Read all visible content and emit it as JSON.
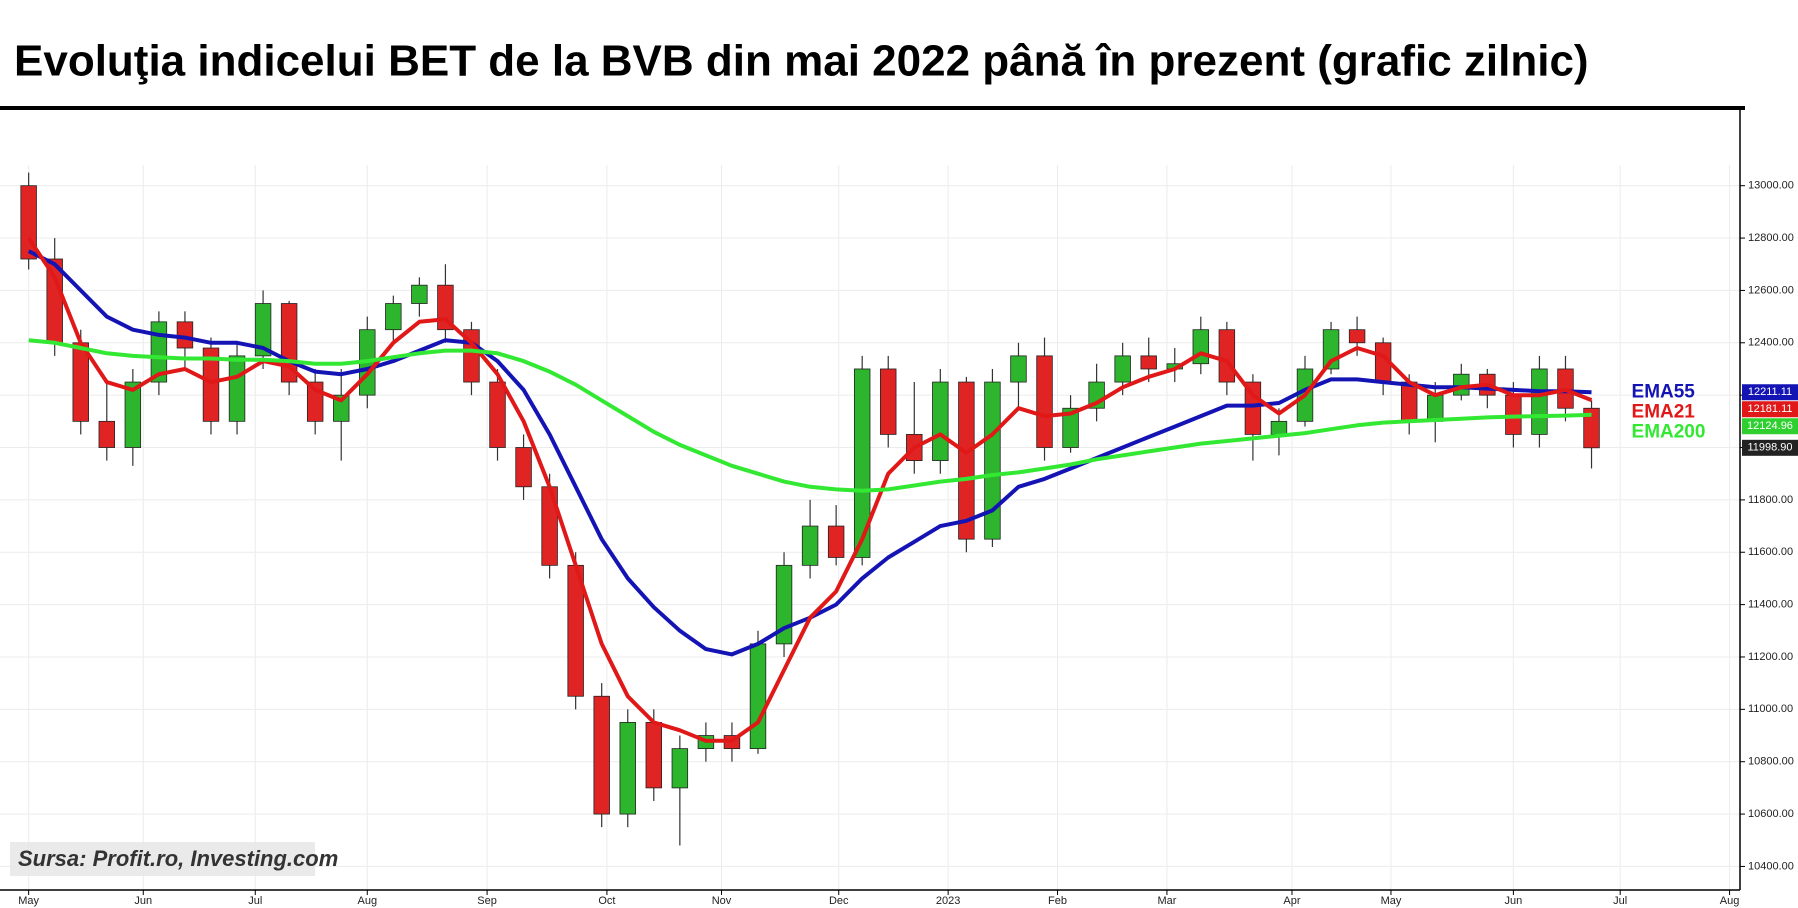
{
  "chart_data": {
    "type": "candlestick",
    "title": "Evoluţia indicelui BET de la BVB din mai 2022 până în prezent (grafic zilnic)",
    "source": "Sursa: Profit.ro, Investing.com",
    "up_color": "#2db52d",
    "down_color": "#e02424",
    "open": [
      13000,
      12720,
      12400,
      12100,
      12000,
      12250,
      12480,
      12380,
      12100,
      12350,
      12550,
      12250,
      12100,
      12200,
      12450,
      12550,
      12620,
      12450,
      12250,
      12000,
      11850,
      11550,
      11050,
      10600,
      10950,
      10700,
      10850,
      10900,
      10850,
      11250,
      11550,
      11700,
      11580,
      12300,
      12050,
      11950,
      12250,
      11650,
      12250,
      12350,
      12000,
      12150,
      12250,
      12350,
      12300,
      12320,
      12450,
      12250,
      12050,
      12100,
      12300,
      12450,
      12400,
      12250,
      12100,
      12200,
      12280,
      12200,
      12050,
      12300,
      12150
    ],
    "high": [
      13050,
      12800,
      12450,
      12250,
      12300,
      12520,
      12520,
      12420,
      12400,
      12600,
      12560,
      12300,
      12300,
      12500,
      12580,
      12650,
      12700,
      12480,
      12300,
      12050,
      11900,
      11600,
      11100,
      11000,
      11000,
      10900,
      10950,
      10950,
      11300,
      11600,
      11800,
      11780,
      12350,
      12350,
      12250,
      12300,
      12270,
      12300,
      12400,
      12420,
      12200,
      12320,
      12400,
      12420,
      12380,
      12500,
      12480,
      12280,
      12150,
      12350,
      12480,
      12500,
      12420,
      12280,
      12250,
      12320,
      12300,
      12250,
      12350,
      12350,
      12180
    ],
    "low": [
      12680,
      12350,
      12050,
      11950,
      11930,
      12200,
      12300,
      12050,
      12050,
      12300,
      12200,
      12050,
      11950,
      12150,
      12400,
      12500,
      12400,
      12200,
      11950,
      11800,
      11500,
      11000,
      10550,
      10550,
      10650,
      10480,
      10800,
      10800,
      10830,
      11200,
      11500,
      11550,
      11550,
      12000,
      11900,
      11900,
      11600,
      11620,
      12150,
      11950,
      11980,
      12100,
      12200,
      12250,
      12250,
      12280,
      12200,
      11950,
      11970,
      12080,
      12280,
      12350,
      12200,
      12050,
      12020,
      12180,
      12150,
      12000,
      12000,
      12100,
      11920
    ],
    "close": [
      12720,
      12400,
      12100,
      12000,
      12250,
      12480,
      12380,
      12100,
      12350,
      12550,
      12250,
      12100,
      12200,
      12450,
      12550,
      12620,
      12450,
      12250,
      12000,
      11850,
      11550,
      11050,
      10600,
      10950,
      10700,
      10850,
      10900,
      10850,
      11250,
      11550,
      11700,
      11580,
      12300,
      12050,
      11950,
      12250,
      11650,
      12250,
      12350,
      12000,
      12150,
      12250,
      12350,
      12300,
      12320,
      12450,
      12250,
      12050,
      12100,
      12300,
      12450,
      12400,
      12250,
      12100,
      12200,
      12280,
      12200,
      12050,
      12300,
      12150,
      11998.9
    ],
    "series": [
      {
        "name": "EMA55",
        "color": "#1414b4",
        "values": [
          12750,
          12700,
          12600,
          12500,
          12450,
          12430,
          12420,
          12400,
          12400,
          12380,
          12330,
          12290,
          12280,
          12300,
          12330,
          12370,
          12410,
          12400,
          12330,
          12220,
          12050,
          11850,
          11650,
          11500,
          11390,
          11300,
          11230,
          11210,
          11250,
          11310,
          11350,
          11400,
          11500,
          11580,
          11640,
          11700,
          11720,
          11760,
          11850,
          11880,
          11920,
          11960,
          12000,
          12040,
          12080,
          12120,
          12160,
          12160,
          12170,
          12220,
          12260,
          12260,
          12250,
          12240,
          12230,
          12230,
          12225,
          12220,
          12215,
          12215,
          12211.11
        ]
      },
      {
        "name": "EMA21",
        "color": "#e01818",
        "values": [
          12800,
          12650,
          12400,
          12250,
          12220,
          12280,
          12300,
          12250,
          12270,
          12330,
          12310,
          12220,
          12180,
          12280,
          12400,
          12480,
          12490,
          12400,
          12280,
          12100,
          11850,
          11550,
          11250,
          11050,
          10950,
          10920,
          10880,
          10880,
          10950,
          11150,
          11350,
          11450,
          11650,
          11900,
          12000,
          12050,
          11980,
          12050,
          12150,
          12120,
          12130,
          12170,
          12230,
          12270,
          12300,
          12360,
          12330,
          12200,
          12130,
          12200,
          12330,
          12380,
          12350,
          12250,
          12200,
          12230,
          12240,
          12200,
          12200,
          12220,
          12181.11
        ]
      },
      {
        "name": "EMA200",
        "color": "#33e833",
        "values": [
          12410,
          12400,
          12380,
          12360,
          12350,
          12345,
          12340,
          12340,
          12335,
          12335,
          12330,
          12320,
          12320,
          12330,
          12345,
          12360,
          12370,
          12370,
          12360,
          12330,
          12290,
          12240,
          12180,
          12120,
          12060,
          12010,
          11970,
          11930,
          11900,
          11870,
          11850,
          11840,
          11835,
          11840,
          11855,
          11870,
          11880,
          11895,
          11905,
          11920,
          11935,
          11955,
          11970,
          11985,
          12000,
          12015,
          12025,
          12035,
          12045,
          12055,
          12070,
          12085,
          12095,
          12100,
          12105,
          12110,
          12115,
          12118,
          12120,
          12122,
          12124.96
        ]
      }
    ],
    "tags": [
      {
        "value": 12211.11,
        "label": "12211.11",
        "color": "#1414b4"
      },
      {
        "value": 12181.11,
        "label": "12181.11",
        "color": "#e01818"
      },
      {
        "value": 12124.96,
        "label": "12124.96",
        "color": "#2fcf2f"
      },
      {
        "value": 11998.9,
        "label": "11998.90",
        "color": "#222222"
      }
    ],
    "xlim": [
      -1.1,
      65.7
    ],
    "xticks": [
      {
        "value": 0,
        "label": "May"
      },
      {
        "value": 4.4,
        "label": "Jun"
      },
      {
        "value": 8.7,
        "label": "Jul"
      },
      {
        "value": 13,
        "label": "Aug"
      },
      {
        "value": 17.6,
        "label": "Sep"
      },
      {
        "value": 22.2,
        "label": "Oct"
      },
      {
        "value": 26.6,
        "label": "Nov"
      },
      {
        "value": 31.1,
        "label": "Dec"
      },
      {
        "value": 35.3,
        "label": "2023"
      },
      {
        "value": 39.5,
        "label": "Feb"
      },
      {
        "value": 43.7,
        "label": "Mar"
      },
      {
        "value": 48.5,
        "label": "Apr"
      },
      {
        "value": 52.3,
        "label": "May"
      },
      {
        "value": 57,
        "label": "Jun"
      },
      {
        "value": 61.1,
        "label": "Jul"
      },
      {
        "value": 65.3,
        "label": "Aug"
      }
    ],
    "ylim": [
      10310,
      13270
    ],
    "yticks": [
      {
        "value": 10400,
        "label": "10400.00"
      },
      {
        "value": 10600,
        "label": "10600.00"
      },
      {
        "value": 10800,
        "label": "10800.00"
      },
      {
        "value": 11000,
        "label": "11000.00"
      },
      {
        "value": 11200,
        "label": "11200.00"
      },
      {
        "value": 11400,
        "label": "11400.00"
      },
      {
        "value": 11600,
        "label": "11600.00"
      },
      {
        "value": 11800,
        "label": "11800.00"
      },
      {
        "value": 12000,
        "label": "12000.00"
      },
      {
        "value": 12200,
        "label": "12200.00"
      },
      {
        "value": 12400,
        "label": "12400.00"
      },
      {
        "value": 12600,
        "label": "12600.00"
      },
      {
        "value": 12800,
        "label": "12800.00"
      },
      {
        "value": 13000,
        "label": "13000.00"
      }
    ],
    "grid": true
  }
}
